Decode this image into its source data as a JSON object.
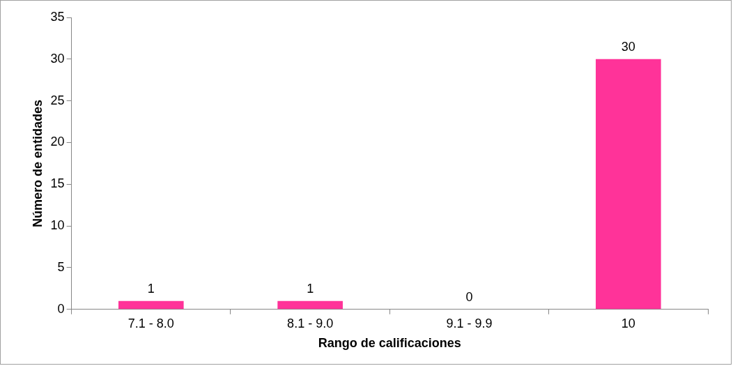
{
  "chart_data": {
    "type": "bar",
    "xlabel": "Rango de calificaciones",
    "ylabel": "Número de entidades",
    "categories": [
      "7.1 - 8.0",
      "8.1 - 9.0",
      "9.1 - 9.9",
      "10"
    ],
    "values": [
      1,
      1,
      0,
      30
    ],
    "color": "#ff3399",
    "ylim": [
      0,
      35
    ],
    "yticks": [
      0,
      5,
      10,
      15,
      20,
      25,
      30,
      35
    ],
    "data_labels": true,
    "legend": false
  }
}
